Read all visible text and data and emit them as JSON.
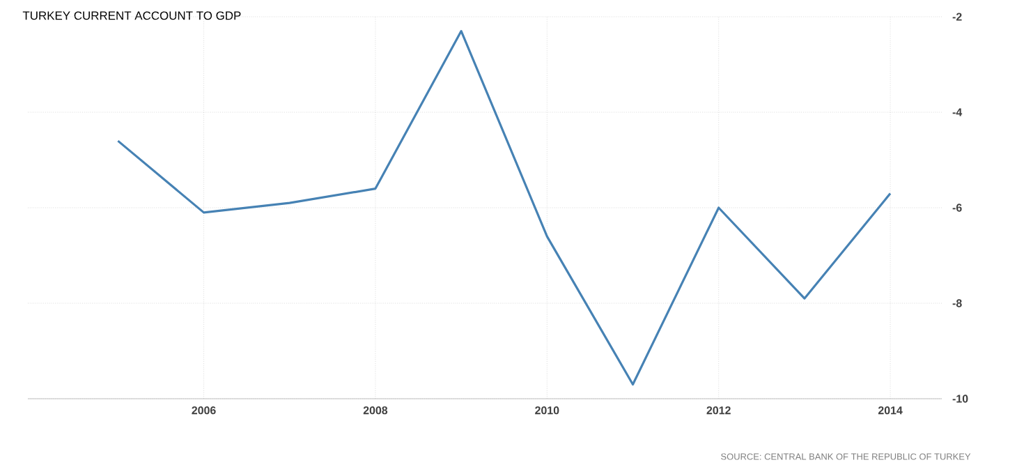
{
  "chart_data": {
    "type": "line",
    "title": "TURKEY CURRENT ACCOUNT TO GDP",
    "x": [
      2005,
      2006,
      2007,
      2008,
      2009,
      2010,
      2011,
      2012,
      2013,
      2014
    ],
    "series": [
      {
        "color": "#4682b4",
        "values": [
          -4.6,
          -6.1,
          -5.9,
          -5.6,
          -2.3,
          -6.6,
          -9.7,
          -6.0,
          -7.9,
          -5.7
        ]
      }
    ],
    "xlim": [
      2003.95,
      2014.6
    ],
    "ylim": [
      -10,
      -2
    ],
    "xticks": [
      2006,
      2008,
      2010,
      2012,
      2014
    ],
    "yticks": [
      -10,
      -8,
      -6,
      -4,
      -2
    ],
    "grid": true,
    "marker": "none",
    "line_style": "solid",
    "annotations": [
      "SOURCE: CENTRAL BANK OF THE REPUBLIC OF TURKEY"
    ]
  }
}
